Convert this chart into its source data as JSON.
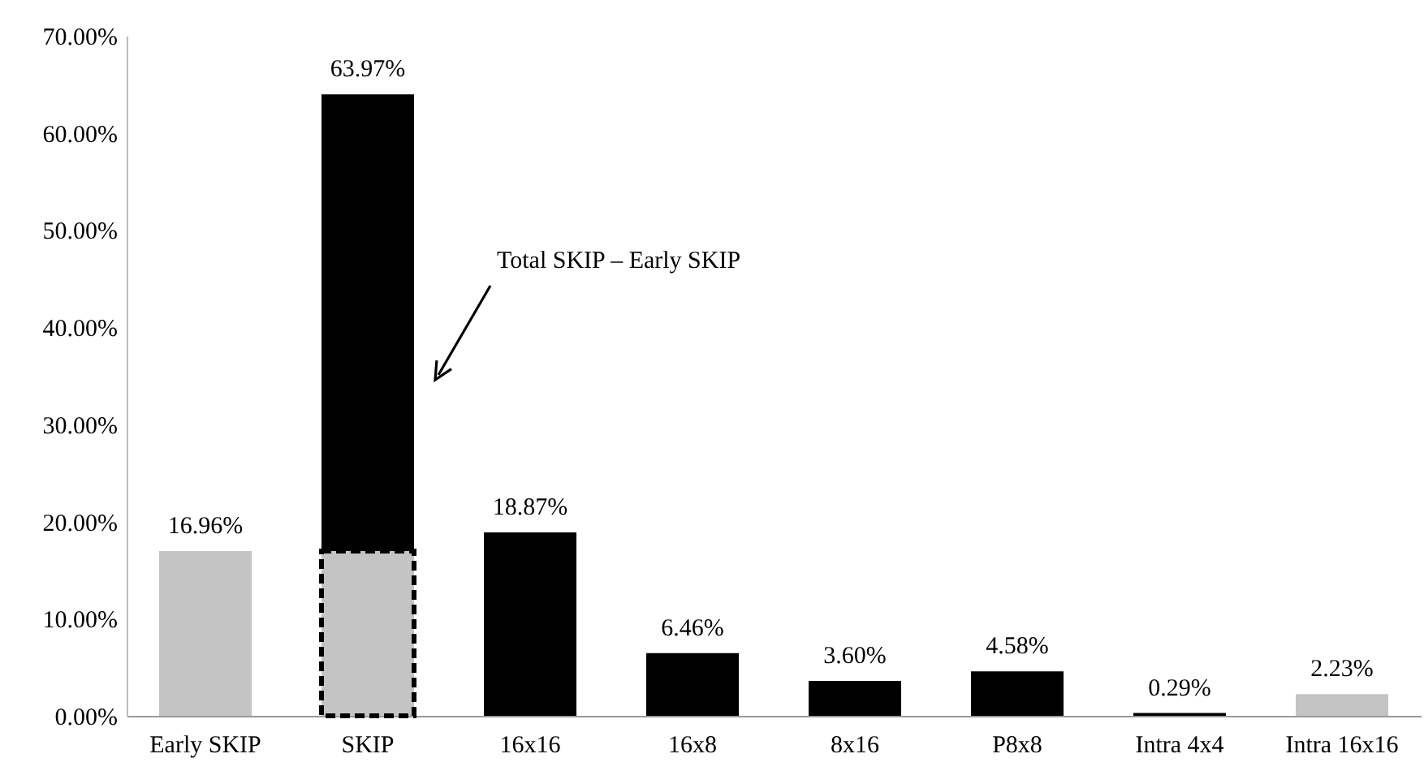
{
  "chart_data": {
    "type": "bar",
    "stacked": true,
    "categories": [
      "Early SKIP",
      "SKIP",
      "16x16",
      "16x8",
      "8x16",
      "P8x8",
      "Intra 4x4",
      "Intra 16x16"
    ],
    "series": [
      {
        "color": "#c4c4c4",
        "values": [
          16.96,
          16.96,
          null,
          null,
          null,
          null,
          null,
          2.23
        ]
      },
      {
        "color": "#000000",
        "values": [
          null,
          47.01,
          18.87,
          6.46,
          3.6,
          4.58,
          0.29,
          null
        ]
      }
    ],
    "totals": [
      "16.96%",
      "63.97%",
      "18.87%",
      "6.46%",
      "3.60%",
      "4.58%",
      "0.29%",
      "2.23%"
    ],
    "ylim": [
      0,
      70
    ],
    "yticks": [
      {
        "value": 0,
        "label": "0.00%"
      },
      {
        "value": 10,
        "label": "10.00%"
      },
      {
        "value": 20,
        "label": "20.00%"
      },
      {
        "value": 30,
        "label": "30.00%"
      },
      {
        "value": 40,
        "label": "40.00%"
      },
      {
        "value": 50,
        "label": "50.00%"
      },
      {
        "value": 60,
        "label": "60.00%"
      },
      {
        "value": 70,
        "label": "70.00%"
      }
    ],
    "annotations": [
      "Total SKIP – Early SKIP"
    ],
    "grid": false
  }
}
